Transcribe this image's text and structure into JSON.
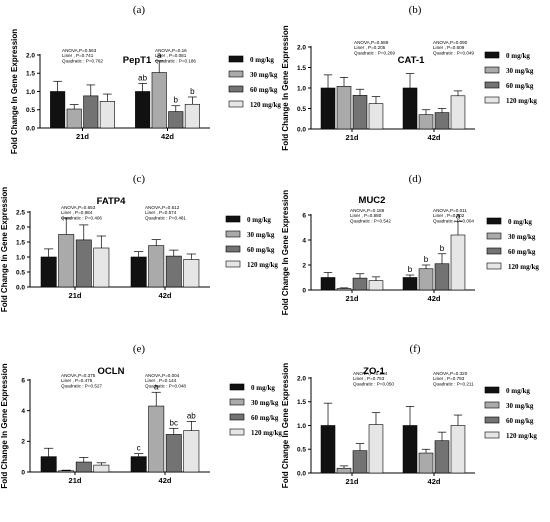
{
  "legend_items": [
    "0 mg/kg",
    "30 mg/kg",
    "60 mg/kg",
    "120 mg/kg"
  ],
  "colors": {
    "fills": [
      "#111111",
      "#aaaaaa",
      "#737373",
      "#e6e6e6"
    ],
    "stroke": "#000000"
  },
  "chart_data": [
    {
      "type": "bar",
      "panel": "(a)",
      "title": "PepT1",
      "ylabel": "Fold Change In Gene Expression",
      "ylim": [
        0,
        2.0
      ],
      "yticks": [
        "0.0",
        "0.5",
        "1.0",
        "1.5",
        "2.0"
      ],
      "categories": [
        "21d",
        "42d"
      ],
      "series": [
        {
          "name": "0 mg/kg",
          "values": [
            1.0,
            1.0
          ],
          "errors": [
            0.28,
            0.22
          ]
        },
        {
          "name": "30 mg/kg",
          "values": [
            0.52,
            1.52
          ],
          "errors": [
            0.12,
            0.32
          ]
        },
        {
          "name": "60 mg/kg",
          "values": [
            0.88,
            0.45
          ],
          "errors": [
            0.3,
            0.16
          ]
        },
        {
          "name": "120 mg/kg",
          "values": [
            0.73,
            0.65
          ],
          "errors": [
            0.2,
            0.2
          ]
        }
      ],
      "letters": [
        [
          "",
          "ab"
        ],
        [
          "",
          "a"
        ],
        [
          "",
          "b"
        ],
        [
          "",
          "b"
        ]
      ],
      "stats": [
        [
          "ANOVA,P=0.563",
          "Liner , P=0.741",
          "Quadratic : P=0.762"
        ],
        [
          "ANOVA,P=0.16",
          "Liner , P=0.081",
          "Quadratic : P=0.186"
        ]
      ],
      "legend": "right"
    },
    {
      "type": "bar",
      "panel": "(b)",
      "title": "CAT-1",
      "ylabel": "Fold Change In Gene Expression",
      "ylim": [
        0,
        2.0
      ],
      "yticks": [
        "0.0",
        "0.5",
        "1.0",
        "1.5",
        "2.0"
      ],
      "categories": [
        "21d",
        "42d"
      ],
      "series": [
        {
          "name": "0 mg/kg",
          "values": [
            1.0,
            1.0
          ],
          "errors": [
            0.32,
            0.35
          ]
        },
        {
          "name": "30 mg/kg",
          "values": [
            1.04,
            0.35
          ],
          "errors": [
            0.22,
            0.12
          ]
        },
        {
          "name": "60 mg/kg",
          "values": [
            0.82,
            0.4
          ],
          "errors": [
            0.15,
            0.1
          ]
        },
        {
          "name": "120 mg/kg",
          "values": [
            0.62,
            0.81
          ],
          "errors": [
            0.17,
            0.12
          ]
        }
      ],
      "letters": [
        [
          "",
          ""
        ],
        [
          "",
          ""
        ],
        [
          "",
          ""
        ],
        [
          "",
          ""
        ]
      ],
      "stats": [
        [
          "ANOVA,P=0.589",
          "Liner , P=0.205",
          "Quadratic : P=0.269"
        ],
        [
          "ANOVA,P=0.090",
          "Liner , P=0.609",
          "Quadratic : P=0.049"
        ]
      ],
      "legend": "right"
    },
    {
      "type": "bar",
      "panel": "(c)",
      "title": "FATP4",
      "ylabel": "Fold Change In Gene Expression",
      "ylim": [
        0,
        2.5
      ],
      "yticks": [
        "0.0",
        "0.5",
        "1.0",
        "1.5",
        "2.0",
        "2.5"
      ],
      "categories": [
        "21d",
        "42d"
      ],
      "series": [
        {
          "name": "0 mg/kg",
          "values": [
            1.0,
            1.0
          ],
          "errors": [
            0.27,
            0.18
          ]
        },
        {
          "name": "30 mg/kg",
          "values": [
            1.75,
            1.38
          ],
          "errors": [
            0.55,
            0.2
          ]
        },
        {
          "name": "60 mg/kg",
          "values": [
            1.57,
            1.03
          ],
          "errors": [
            0.5,
            0.2
          ]
        },
        {
          "name": "120 mg/kg",
          "values": [
            1.3,
            0.92
          ],
          "errors": [
            0.4,
            0.18
          ]
        }
      ],
      "letters": [
        [
          "",
          ""
        ],
        [
          "",
          ""
        ],
        [
          "",
          ""
        ],
        [
          "",
          ""
        ]
      ],
      "stats": [
        [
          "ANOVA,P=0.653",
          "Liner , P=0.884",
          "Quadratic : P=0.406"
        ],
        [
          "ANOVA,P=0.512",
          "Liner , P=0.574",
          "Quadratic : P=0.481"
        ]
      ],
      "legend": "right"
    },
    {
      "type": "bar",
      "panel": "(d)",
      "title": "MUC2",
      "ylabel": "Fold Change In Gene Expression",
      "ylim": [
        0,
        6
      ],
      "yticks": [
        "0",
        "2",
        "4",
        "6"
      ],
      "categories": [
        "21d",
        "42d"
      ],
      "series": [
        {
          "name": "0 mg/kg",
          "values": [
            1.0,
            1.0
          ],
          "errors": [
            0.4,
            0.2
          ]
        },
        {
          "name": "30 mg/kg",
          "values": [
            0.12,
            1.7
          ],
          "errors": [
            0.05,
            0.3
          ]
        },
        {
          "name": "60 mg/kg",
          "values": [
            0.95,
            2.1
          ],
          "errors": [
            0.35,
            0.8
          ]
        },
        {
          "name": "120 mg/kg",
          "values": [
            0.75,
            4.4
          ],
          "errors": [
            0.3,
            1.1
          ]
        }
      ],
      "letters": [
        [
          "",
          "b"
        ],
        [
          "",
          "b"
        ],
        [
          "",
          "b"
        ],
        [
          "",
          "a"
        ]
      ],
      "stats": [
        [
          "ANOVA,P=0.186",
          "Liner , P=0.880",
          "Quadratic : P=0.542"
        ],
        [
          "ANOVA,P=0.011",
          "Liner , P=0.002",
          "Quadratic : P=0.004"
        ]
      ],
      "legend": "right"
    },
    {
      "type": "bar",
      "panel": "(e)",
      "title": "OCLN",
      "ylabel": "Fold Change In Gene Expression",
      "ylim": [
        0,
        6
      ],
      "yticks": [
        "0",
        "2",
        "4",
        "6"
      ],
      "categories": [
        "21d",
        "42d"
      ],
      "series": [
        {
          "name": "0 mg/kg",
          "values": [
            1.0,
            1.0
          ],
          "errors": [
            0.55,
            0.2
          ]
        },
        {
          "name": "30 mg/kg",
          "values": [
            0.08,
            4.3
          ],
          "errors": [
            0.04,
            0.9
          ]
        },
        {
          "name": "60 mg/kg",
          "values": [
            0.65,
            2.45
          ],
          "errors": [
            0.3,
            0.4
          ]
        },
        {
          "name": "120 mg/kg",
          "values": [
            0.45,
            2.7
          ],
          "errors": [
            0.15,
            0.6
          ]
        }
      ],
      "letters": [
        [
          "",
          "c"
        ],
        [
          "",
          "a"
        ],
        [
          "",
          "bc"
        ],
        [
          "",
          "ab"
        ]
      ],
      "stats": [
        [
          "ANOVA,P=0.375",
          "Liner , P=0.475",
          "Quadratic : P=0.527"
        ],
        [
          "ANOVA,P=0.004",
          "Liner , P=0.144",
          "Quadratic : P=0.048"
        ]
      ],
      "legend": "right"
    },
    {
      "type": "bar",
      "panel": "(f)",
      "title": "ZO-1",
      "ylabel": "Fold Change In Gene Expression",
      "ylim": [
        0,
        2.0
      ],
      "yticks": [
        "0.0",
        "0.5",
        "1.0",
        "1.5",
        "2.0"
      ],
      "categories": [
        "21d",
        "42d"
      ],
      "series": [
        {
          "name": "0 mg/kg",
          "values": [
            1.0,
            1.0
          ],
          "errors": [
            0.47,
            0.4
          ]
        },
        {
          "name": "30 mg/kg",
          "values": [
            0.1,
            0.42
          ],
          "errors": [
            0.05,
            0.08
          ]
        },
        {
          "name": "60 mg/kg",
          "values": [
            0.47,
            0.68
          ],
          "errors": [
            0.15,
            0.18
          ]
        },
        {
          "name": "120 mg/kg",
          "values": [
            1.02,
            1.0
          ],
          "errors": [
            0.25,
            0.22
          ]
        }
      ],
      "letters": [
        [
          "",
          ""
        ],
        [
          "",
          ""
        ],
        [
          "",
          ""
        ],
        [
          "",
          ""
        ]
      ],
      "stats": [
        [
          "ANOVA,P=0.084",
          "Liner , P=0.753",
          "Quadratic : P=0.050"
        ],
        [
          "ANOVA,P=0.320",
          "Liner , P=0.793",
          "Quadratic : P=0.211"
        ]
      ],
      "legend": "right"
    }
  ]
}
